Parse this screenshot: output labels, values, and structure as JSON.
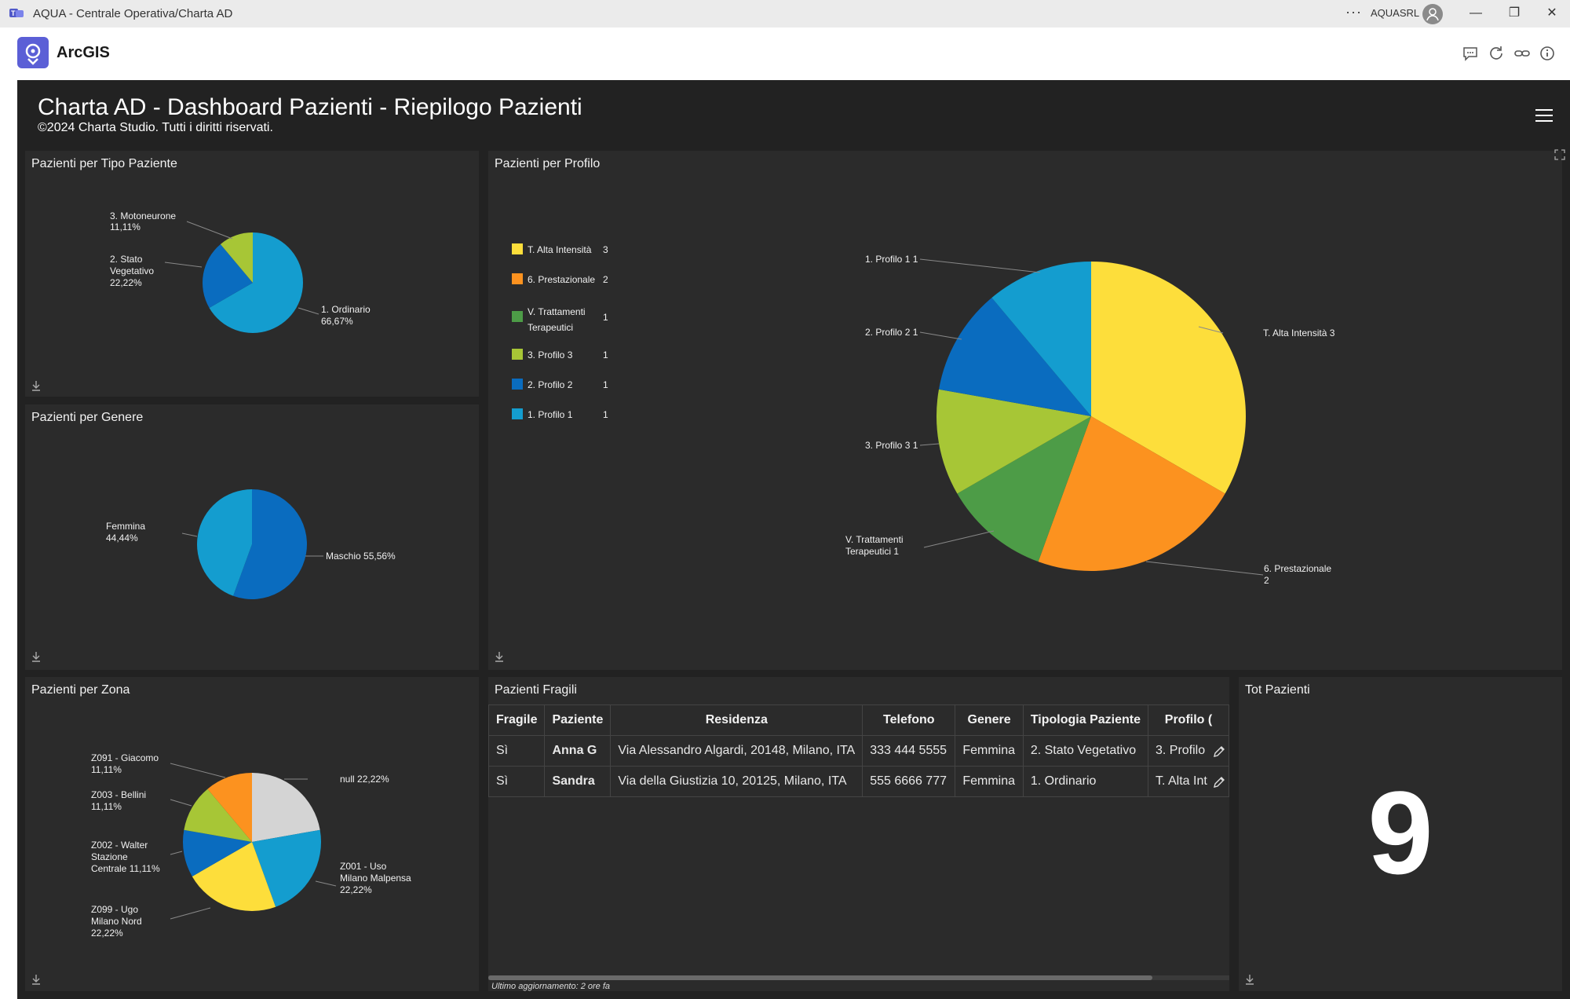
{
  "window": {
    "title": "AQUA - Centrale Operativa/Charta AD",
    "user": "AQUASRL",
    "more": "···",
    "minimize": "—",
    "restore": "❐",
    "close": "✕"
  },
  "app": {
    "brand": "ArcGIS"
  },
  "dashboard": {
    "title": "Charta AD - Dashboard Pazienti - Riepilogo Pazienti",
    "subtitle": "©2024 Charta Studio. Tutti i diritti riservati."
  },
  "panels": {
    "tipo": {
      "title": "Pazienti per Tipo Paziente"
    },
    "genere": {
      "title": "Pazienti per Genere"
    },
    "zona": {
      "title": "Pazienti per Zona"
    },
    "profilo": {
      "title": "Pazienti per Profilo"
    },
    "fragili": {
      "title": "Pazienti Fragili",
      "footer": "Ultimo aggiornamento: 2 ore fa"
    },
    "tot": {
      "title": "Tot Pazienti",
      "value": "9"
    }
  },
  "chart_data": [
    {
      "type": "pie",
      "title": "Pazienti per Tipo Paziente",
      "slices": [
        {
          "label": "1. Ordinario",
          "percent": "66,67%",
          "value": 66.67,
          "color": "#149dcf"
        },
        {
          "label": "2. Stato Vegetativo",
          "percent": "22,22%",
          "value": 22.22,
          "color": "#0a6cbf"
        },
        {
          "label": "3. Motoneurone",
          "percent": "11,11%",
          "value": 11.11,
          "color": "#a7c636"
        }
      ]
    },
    {
      "type": "pie",
      "title": "Pazienti per Genere",
      "slices": [
        {
          "label": "Maschio",
          "percent": "55,56%",
          "value": 55.56,
          "color": "#0a6cbf"
        },
        {
          "label": "Femmina",
          "percent": "44,44%",
          "value": 44.44,
          "color": "#149dcf"
        }
      ]
    },
    {
      "type": "pie",
      "title": "Pazienti per Zona",
      "slices": [
        {
          "label": "null",
          "percent": "22,22%",
          "value": 22.22,
          "color": "#d4d4d4"
        },
        {
          "label": "Z001 - Uso Milano Malpensa",
          "percent": "22,22%",
          "value": 22.22,
          "color": "#149dcf"
        },
        {
          "label": "Z099 - Ugo Milano Nord",
          "percent": "22,22%",
          "value": 22.22,
          "color": "#fdde3b"
        },
        {
          "label": "Z002 - Walter Stazione Centrale",
          "percent": "11,11%",
          "value": 11.11,
          "color": "#0a6cbf"
        },
        {
          "label": "Z003 - Bellini",
          "percent": "11,11%",
          "value": 11.11,
          "color": "#a7c636"
        },
        {
          "label": "Z091 - Giacomo",
          "percent": "11,11%",
          "value": 11.11,
          "color": "#fc921f"
        }
      ]
    },
    {
      "type": "pie",
      "title": "Pazienti per Profilo",
      "slices": [
        {
          "label": "T. Alta Intensità",
          "value": 3,
          "color": "#fdde3b"
        },
        {
          "label": "6. Prestazionale",
          "value": 2,
          "color": "#fc921f"
        },
        {
          "label": "V. Trattamenti Terapeutici",
          "value": 1,
          "color": "#4d9c47"
        },
        {
          "label": "3. Profilo 3",
          "value": 1,
          "color": "#a7c636"
        },
        {
          "label": "2. Profilo 2",
          "value": 1,
          "color": "#0a6cbf"
        },
        {
          "label": "1. Profilo 1",
          "value": 1,
          "color": "#149dcf"
        }
      ],
      "legend": "left"
    }
  ],
  "pie_labels": {
    "tipo": {
      "moto": [
        "3. Motoneurone",
        "11,11%"
      ],
      "stato": [
        "2. Stato",
        "Vegetativo",
        "22,22%"
      ],
      "ord": [
        "1. Ordinario",
        "66,67%"
      ]
    },
    "genere": {
      "femmina": [
        "Femmina",
        "44,44%"
      ],
      "maschio": "Maschio 55,56%"
    },
    "zona": {
      "z091": [
        "Z091 - Giacomo",
        "11,11%"
      ],
      "z003": [
        "Z003 - Bellini",
        "11,11%"
      ],
      "z002": [
        "Z002 - Walter",
        "Stazione",
        "Centrale 11,11%"
      ],
      "z099": [
        "Z099 - Ugo",
        "Milano Nord",
        "22,22%"
      ],
      "null": "null 22,22%",
      "z001": [
        "Z001 - Uso",
        "Milano Malpensa",
        "22,22%"
      ]
    },
    "profilo": {
      "p1": "1. Profilo 1 1",
      "p2": "2. Profilo 2 1",
      "p3": "3. Profilo 3 1",
      "vt": [
        "V. Trattamenti",
        "Terapeutici 1"
      ],
      "pre": [
        "6. Prestazionale",
        "2"
      ],
      "alta": "T. Alta Intensità 3"
    }
  },
  "legend": [
    {
      "label": [
        "T. Alta Intensità"
      ],
      "count": "3",
      "color": "#fdde3b"
    },
    {
      "label": [
        "6. Prestazionale"
      ],
      "count": "2",
      "color": "#fc921f"
    },
    {
      "label": [
        "V. Trattamenti",
        "Terapeutici"
      ],
      "count": "1",
      "color": "#4d9c47"
    },
    {
      "label": [
        "3. Profilo 3"
      ],
      "count": "1",
      "color": "#a7c636"
    },
    {
      "label": [
        "2. Profilo 2"
      ],
      "count": "1",
      "color": "#0a6cbf"
    },
    {
      "label": [
        "1. Profilo 1"
      ],
      "count": "1",
      "color": "#149dcf"
    }
  ],
  "table": {
    "headers": [
      "Fragile",
      "Paziente",
      "Residenza",
      "Telefono",
      "Genere",
      "Tipologia Paziente",
      "Profilo ("
    ],
    "rows": [
      [
        "Sì",
        "Anna G",
        "Via Alessandro Algardi, 20148, Milano, ITA",
        "333 444 5555",
        "Femmina",
        "2. Stato Vegetativo",
        "3. Profilo"
      ],
      [
        "Sì",
        "Sandra",
        "Via della Giustizia 10, 20125, Milano, ITA",
        "555 6666 777",
        "Femmina",
        "1. Ordinario",
        "T. Alta Int"
      ]
    ]
  }
}
